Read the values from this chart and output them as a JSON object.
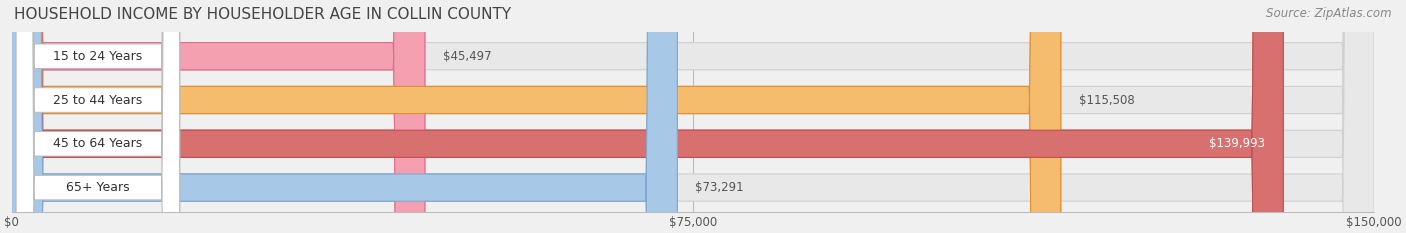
{
  "title": "HOUSEHOLD INCOME BY HOUSEHOLDER AGE IN COLLIN COUNTY",
  "source": "Source: ZipAtlas.com",
  "categories": [
    "15 to 24 Years",
    "25 to 44 Years",
    "45 to 64 Years",
    "65+ Years"
  ],
  "values": [
    45497,
    115508,
    139993,
    73291
  ],
  "bar_colors": [
    "#f4a0b0",
    "#f5bc6e",
    "#d97070",
    "#a8c8e8"
  ],
  "bar_edge_colors": [
    "#e07090",
    "#e09030",
    "#c05050",
    "#80a8d0"
  ],
  "label_colors": [
    "#555555",
    "#ffffff",
    "#ffffff",
    "#555555"
  ],
  "value_labels": [
    "$45,497",
    "$115,508",
    "$139,993",
    "$73,291"
  ],
  "xlim": [
    0,
    150000
  ],
  "xticks": [
    0,
    75000,
    150000
  ],
  "xticklabels": [
    "$0",
    "$75,000",
    "$150,000"
  ],
  "background_color": "#f0f0f0",
  "bar_bg_color": "#e8e8e8",
  "title_fontsize": 11,
  "source_fontsize": 8.5,
  "label_fontsize": 9,
  "value_fontsize": 8.5
}
